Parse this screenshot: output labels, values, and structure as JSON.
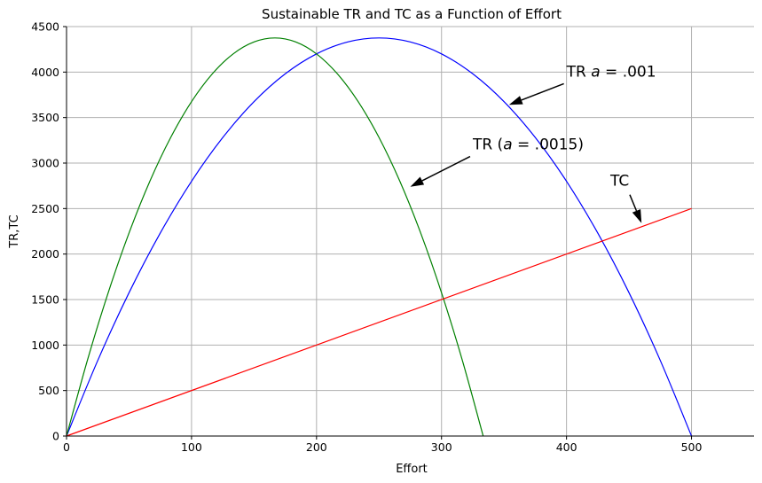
{
  "chart_data": {
    "type": "line",
    "title": "Sustainable TR and TC as a Function of Effort",
    "xlabel": "Effort",
    "ylabel": "TR,TC",
    "xlim": [
      0,
      550
    ],
    "ylim": [
      0,
      4500
    ],
    "xticks": [
      "0",
      "100",
      "200",
      "300",
      "400",
      "500"
    ],
    "xtick_values": [
      0,
      100,
      200,
      300,
      400,
      500
    ],
    "yticks": [
      "0",
      "500",
      "1000",
      "1500",
      "2000",
      "2500",
      "3000",
      "3500",
      "4000",
      "4500"
    ],
    "ytick_values": [
      0,
      500,
      1000,
      1500,
      2000,
      2500,
      3000,
      3500,
      4000,
      4500
    ],
    "grid": true,
    "series": [
      {
        "color": "#0000ff",
        "x": [
          0,
          25,
          50,
          75,
          100,
          125,
          150,
          175,
          200,
          225,
          250,
          275,
          300,
          325,
          350,
          375,
          400,
          425,
          450,
          475,
          500
        ],
        "y": [
          0,
          831,
          1575,
          2231,
          2800,
          3281,
          3675,
          3981,
          4200,
          4331,
          4375,
          4331,
          4200,
          3981,
          3675,
          3281,
          2800,
          2231,
          1575,
          831,
          0
        ]
      },
      {
        "color": "#008000",
        "x": [
          0,
          16.67,
          33.33,
          50,
          66.67,
          83.33,
          100,
          116.67,
          133.33,
          150,
          166.67,
          183.33,
          200,
          216.67,
          233.33,
          250,
          266.67,
          283.33,
          300,
          316.67,
          333.33
        ],
        "y": [
          0,
          831,
          1575,
          2231,
          2800,
          3281,
          3675,
          3981,
          4200,
          4331,
          4375,
          4331,
          4200,
          3981,
          3675,
          3281,
          2800,
          2231,
          1575,
          831,
          0
        ]
      },
      {
        "color": "#ff0000",
        "x": [
          0,
          500
        ],
        "y": [
          0,
          2500
        ]
      }
    ],
    "annotations": [
      {
        "text": "TR a = .001",
        "prefix": "TR ",
        "math": "a",
        "suffix": " = .001",
        "text_x": 400,
        "text_y": 3950,
        "arrow_to": [
          354,
          3640
        ]
      },
      {
        "text": "TR (a = .0015)",
        "prefix": "TR (",
        "math": "a",
        "suffix": " = .0015)",
        "text_x": 325,
        "text_y": 3150,
        "arrow_to": [
          275,
          2740
        ]
      },
      {
        "text": "TC",
        "prefix": "TC",
        "math": "",
        "suffix": "",
        "text_x": 435,
        "text_y": 2750,
        "arrow_to": [
          460,
          2340
        ]
      }
    ]
  }
}
